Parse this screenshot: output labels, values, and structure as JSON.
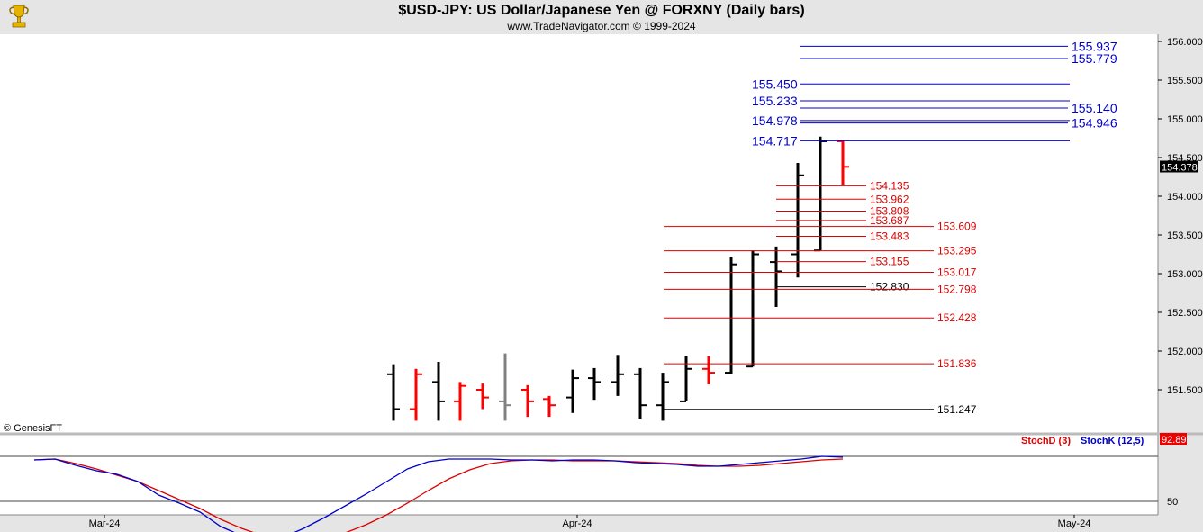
{
  "header": {
    "title": "$USD-JPY:  US Dollar/Japanese Yen @ FORXNY  (Daily bars)",
    "subtitle": "www.TradeNavigator.com © 1999-2024"
  },
  "copyright": "© GenesisFT",
  "colors": {
    "bull": "#000000",
    "bear": "#ff0000",
    "doji": "#808080",
    "levels_blue": "#0000cc",
    "levels_red": "#dd0000",
    "stochK": "#0000cc",
    "stochD": "#dd0000",
    "header_bg": "#e5e5e5",
    "axis_bg": "#e5e5e5"
  },
  "chart_data": [
    {
      "type": "ohlc",
      "title": "$USD-JPY:  US Dollar/Japanese Yen @ FORXNY  (Daily bars)",
      "ylim": [
        151.1,
        156.1
      ],
      "y_ticks": [
        "156.000",
        "155.500",
        "155.000",
        "154.500",
        "154.000",
        "153.500",
        "153.000",
        "152.500",
        "152.000",
        "151.500"
      ],
      "x_ticks": [
        "Mar-24",
        "Apr-24",
        "May-24"
      ],
      "last_price": "154.378",
      "bars": [
        {
          "open": 151.7,
          "high": 151.83,
          "low": 151.1,
          "close": 151.25,
          "color": "black"
        },
        {
          "open": 151.25,
          "high": 151.77,
          "low": 151.1,
          "close": 151.7,
          "color": "red"
        },
        {
          "open": 151.6,
          "high": 151.86,
          "low": 151.1,
          "close": 151.35,
          "color": "black"
        },
        {
          "open": 151.35,
          "high": 151.6,
          "low": 151.1,
          "close": 151.55,
          "color": "red"
        },
        {
          "open": 151.5,
          "high": 151.58,
          "low": 151.25,
          "close": 151.4,
          "color": "red"
        },
        {
          "open": 151.35,
          "high": 151.97,
          "low": 151.1,
          "close": 151.3,
          "color": "gray"
        },
        {
          "open": 151.5,
          "high": 151.56,
          "low": 151.15,
          "close": 151.35,
          "color": "red"
        },
        {
          "open": 151.38,
          "high": 151.42,
          "low": 151.15,
          "close": 151.3,
          "color": "red"
        },
        {
          "open": 151.4,
          "high": 151.76,
          "low": 151.2,
          "close": 151.65,
          "color": "black"
        },
        {
          "open": 151.65,
          "high": 151.78,
          "low": 151.37,
          "close": 151.6,
          "color": "black"
        },
        {
          "open": 151.6,
          "high": 151.95,
          "low": 151.42,
          "close": 151.7,
          "color": "black"
        },
        {
          "open": 151.7,
          "high": 151.78,
          "low": 151.12,
          "close": 151.3,
          "color": "black"
        },
        {
          "open": 151.3,
          "high": 151.72,
          "low": 151.1,
          "close": 151.6,
          "color": "black"
        },
        {
          "open": 151.35,
          "high": 151.93,
          "low": 151.35,
          "close": 151.77,
          "color": "black"
        },
        {
          "open": 151.77,
          "high": 151.93,
          "low": 151.57,
          "close": 151.72,
          "color": "red"
        },
        {
          "open": 151.72,
          "high": 153.22,
          "low": 151.7,
          "close": 153.12,
          "color": "black"
        },
        {
          "open": 151.8,
          "high": 153.3,
          "low": 151.8,
          "close": 153.25,
          "color": "black"
        },
        {
          "open": 153.15,
          "high": 153.35,
          "low": 152.57,
          "close": 153.03,
          "color": "black"
        },
        {
          "open": 153.25,
          "high": 154.43,
          "low": 152.95,
          "close": 154.27,
          "color": "black"
        },
        {
          "open": 153.3,
          "high": 154.77,
          "low": 153.3,
          "close": 154.71,
          "color": "black"
        },
        {
          "open": 154.71,
          "high": 154.72,
          "low": 154.15,
          "close": 154.38,
          "color": "red"
        }
      ],
      "levels": [
        {
          "value": 155.937,
          "label": "155.937",
          "color": "blue",
          "side": "right"
        },
        {
          "value": 155.779,
          "label": "155.779",
          "color": "blue",
          "side": "right"
        },
        {
          "value": 155.45,
          "label": "155.450",
          "color": "blue",
          "side": "left"
        },
        {
          "value": 155.233,
          "label": "155.233",
          "color": "blue",
          "side": "left"
        },
        {
          "value": 155.14,
          "label": "155.140",
          "color": "blue",
          "side": "right"
        },
        {
          "value": 154.978,
          "label": "154.978",
          "color": "blue",
          "side": "left"
        },
        {
          "value": 154.946,
          "label": "154.946",
          "color": "blue",
          "side": "right"
        },
        {
          "value": 154.717,
          "label": "154.717",
          "color": "blue",
          "side": "left"
        },
        {
          "value": 154.135,
          "label": "154.135",
          "color": "red",
          "side": "right"
        },
        {
          "value": 153.962,
          "label": "153.962",
          "color": "red",
          "side": "right"
        },
        {
          "value": 153.808,
          "label": "153.808",
          "color": "red",
          "side": "right"
        },
        {
          "value": 153.687,
          "label": "153.687",
          "color": "red",
          "side": "right"
        },
        {
          "value": 153.609,
          "label": "153.609",
          "color": "red",
          "side": "right"
        },
        {
          "value": 153.483,
          "label": "153.483",
          "color": "red",
          "side": "right"
        },
        {
          "value": 153.295,
          "label": "153.295",
          "color": "red",
          "side": "right"
        },
        {
          "value": 153.155,
          "label": "153.155",
          "color": "red",
          "side": "right"
        },
        {
          "value": 153.017,
          "label": "153.017",
          "color": "red",
          "side": "right"
        },
        {
          "value": 152.83,
          "label": "152.830",
          "color": "black",
          "side": "right"
        },
        {
          "value": 152.798,
          "label": "152.798",
          "color": "red",
          "side": "right"
        },
        {
          "value": 152.428,
          "label": "152.428",
          "color": "red",
          "side": "right"
        },
        {
          "value": 151.836,
          "label": "151.836",
          "color": "red",
          "side": "right"
        },
        {
          "value": 151.247,
          "label": "151.247",
          "color": "black",
          "side": "right"
        }
      ]
    },
    {
      "type": "line",
      "title": "Stochastic",
      "ylim": [
        0,
        100
      ],
      "y_ticks": [
        "50"
      ],
      "last_value": "92.89",
      "series": [
        {
          "name": "StochD (3)",
          "color": "red",
          "values": [
            96,
            97,
            92,
            86,
            79,
            72,
            62,
            52,
            42,
            30,
            20,
            12,
            8,
            7,
            9,
            15,
            24,
            35,
            48,
            62,
            75,
            85,
            92,
            95,
            96,
            96,
            95,
            95,
            95,
            94,
            93,
            92,
            90,
            89,
            89,
            90,
            92,
            94,
            96,
            97
          ]
        },
        {
          "name": "StochK (12,5)",
          "color": "blue",
          "values": [
            96,
            97,
            90,
            84,
            80,
            72,
            57,
            48,
            38,
            22,
            12,
            8,
            10,
            20,
            32,
            45,
            58,
            72,
            86,
            94,
            97,
            97,
            97,
            96,
            96,
            95,
            96,
            96,
            95,
            93,
            92,
            91,
            89,
            89,
            91,
            93,
            95,
            97,
            100,
            99
          ]
        }
      ]
    }
  ]
}
